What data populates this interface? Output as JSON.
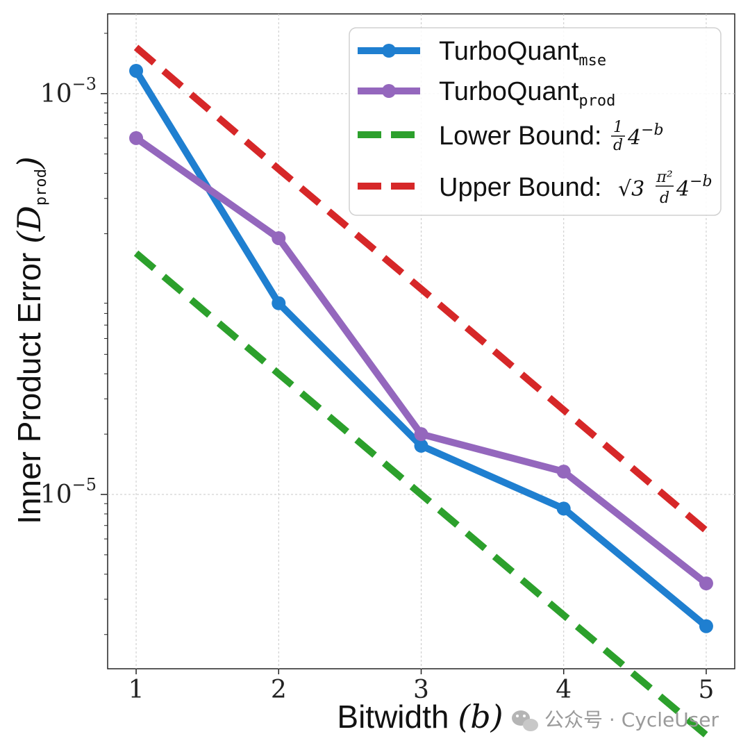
{
  "chart_data": {
    "type": "line",
    "x": [
      1,
      2,
      3,
      4,
      5
    ],
    "xlabel": "Bitwidth",
    "xlabel_math": "(b)",
    "ylabel": "Inner Product Error",
    "ylabel_math_open": "(D",
    "ylabel_math_sub": "prod",
    "ylabel_math_close": ")",
    "yscale": "log",
    "ylim": [
      1.35e-06,
      0.0025
    ],
    "xlim": [
      0.8,
      5.2
    ],
    "grid": true,
    "legend_position": "top-right",
    "x_ticks": [
      "1",
      "2",
      "3",
      "4",
      "5"
    ],
    "y_ticks": [
      {
        "value": 0.001,
        "base": "10",
        "exp": "−3"
      },
      {
        "value": 1e-05,
        "base": "10",
        "exp": "−5"
      }
    ],
    "series": [
      {
        "name": "TurboQuant",
        "name_sub": "mse",
        "style": "solid-marker",
        "color": "#1f7fd0",
        "values": [
          0.0013,
          9e-05,
          1.75e-05,
          8.5e-06,
          2.2e-06
        ]
      },
      {
        "name": "TurboQuant",
        "name_sub": "prod",
        "style": "solid-marker",
        "color": "#9467bd",
        "values": [
          0.0006,
          0.00019,
          2e-05,
          1.3e-05,
          3.6e-06
        ]
      },
      {
        "name": "Lower Bound:",
        "name_math": "¼⁻ᵇ/d",
        "formula_frac_num": "1",
        "formula_frac_den": "d",
        "formula_tail": "4",
        "formula_exp": "−b",
        "style": "dashed",
        "color": "#2ca02c",
        "values": [
          0.00016,
          4e-05,
          1e-05,
          2.5e-06,
          6.3e-07
        ]
      },
      {
        "name": "Upper Bound:",
        "formula_sqrt": "√3",
        "formula_frac_num": "π²",
        "formula_frac_den": "d",
        "formula_tail": "4",
        "formula_exp": "−b",
        "style": "dashed",
        "color": "#d62728",
        "values": [
          0.0017,
          0.00042,
          0.000106,
          2.64e-05,
          6.6e-06
        ]
      }
    ]
  },
  "watermark": {
    "icon": "wechat-icon",
    "text": "公众号 · CycleUser"
  }
}
